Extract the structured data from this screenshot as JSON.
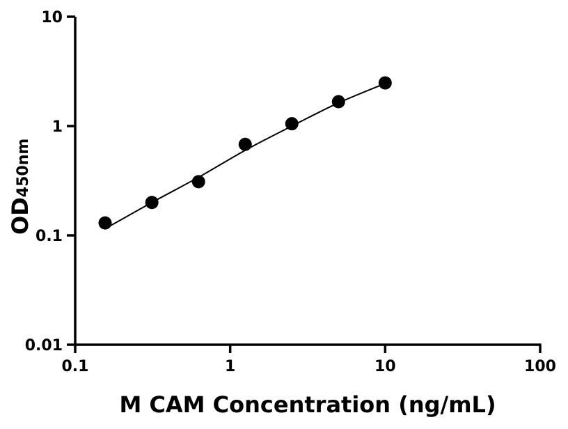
{
  "chart_data": {
    "type": "scatter",
    "title": "",
    "xlabel": "M CAM Concentration (ng/mL)",
    "ylabel_main": "OD",
    "ylabel_sub": "450nm",
    "xscale": "log",
    "yscale": "log",
    "xlim": [
      0.1,
      100
    ],
    "ylim": [
      0.01,
      10
    ],
    "xticks": [
      0.1,
      1,
      10,
      100
    ],
    "xtick_labels": [
      "0.1",
      "1",
      "10",
      "100"
    ],
    "yticks": [
      0.01,
      0.1,
      1,
      10
    ],
    "ytick_labels": [
      "0.01",
      "0.1",
      "1",
      "10"
    ],
    "grid": false,
    "series": [
      {
        "x": [
          0.156,
          0.3125,
          0.625,
          1.25,
          2.5,
          5,
          10
        ],
        "y": [
          0.13,
          0.2,
          0.31,
          0.68,
          1.05,
          1.67,
          2.48
        ]
      }
    ],
    "fit_curve": {
      "x": [
        0.156,
        0.3125,
        0.625,
        1.25,
        2.5,
        5,
        10
      ],
      "y": [
        0.115,
        0.2,
        0.34,
        0.6,
        1.0,
        1.63,
        2.45
      ]
    },
    "colors": {
      "points": "#000000",
      "line": "#000000"
    }
  }
}
